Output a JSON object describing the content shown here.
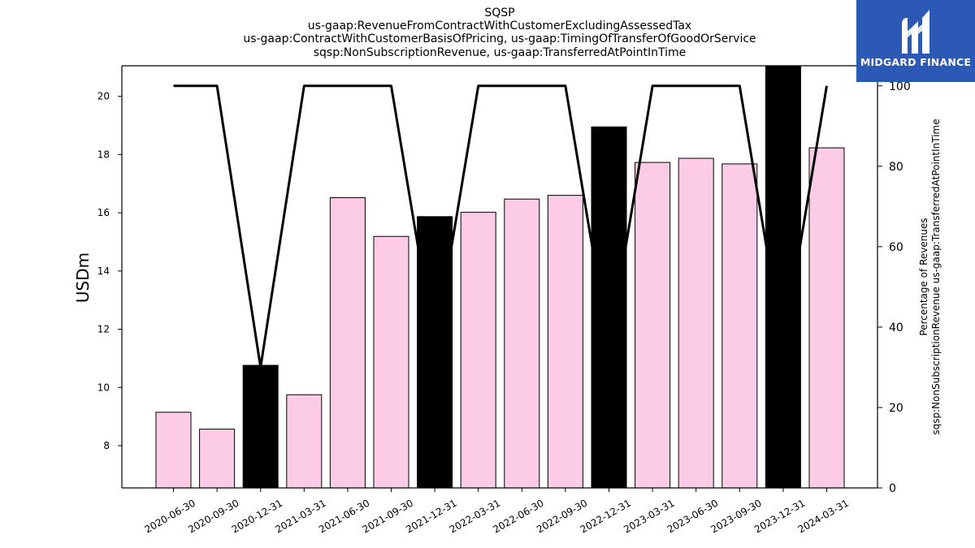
{
  "brand": {
    "name": "MIDGARD FINANCE",
    "logo_color": "#2b59b5",
    "logo_icon": "midgard-m-logo-icon"
  },
  "chart_data": {
    "type": "bar",
    "title_lines": [
      "SQSP",
      "us-gaap:RevenueFromContractWithCustomerExcludingAssessedTax",
      "us-gaap:ContractWithCustomerBasisOfPricing, us-gaap:TimingOfTransferOfGoodOrService",
      "sqsp:NonSubscriptionRevenue, us-gaap:TransferredAtPointInTime"
    ],
    "ylabel": "USDm",
    "y2label_lines": [
      "Percentage of Revenues",
      "sqsp:NonSubscriptionRevenue us-gaap:TransferredAtPointInTime"
    ],
    "categories": [
      "2020-06-30",
      "2020-09-30",
      "2020-12-31",
      "2021-03-31",
      "2021-06-30",
      "2021-09-30",
      "2021-12-31",
      "2022-03-31",
      "2022-06-30",
      "2022-09-30",
      "2022-12-31",
      "2023-03-31",
      "2023-06-30",
      "2023-09-30",
      "2023-12-31",
      "2024-03-31"
    ],
    "values": [
      9.15,
      8.57,
      10.76,
      9.75,
      16.52,
      15.19,
      15.87,
      16.02,
      16.47,
      16.6,
      18.95,
      17.73,
      17.87,
      17.68,
      21.1,
      18.23
    ],
    "bar_colors": [
      "#fccbe6",
      "#fccbe6",
      "#000000",
      "#fccbe6",
      "#fccbe6",
      "#fccbe6",
      "#000000",
      "#fccbe6",
      "#fccbe6",
      "#fccbe6",
      "#000000",
      "#fccbe6",
      "#fccbe6",
      "#fccbe6",
      "#000000",
      "#fccbe6"
    ],
    "line_series": {
      "values": [
        100,
        100,
        30,
        100,
        100,
        100,
        35,
        100,
        100,
        100,
        35,
        100,
        100,
        100,
        35,
        100
      ],
      "color": "#000000"
    },
    "ylim": [
      6.55,
      21.05
    ],
    "yticks": [
      8,
      10,
      12,
      14,
      16,
      18,
      20
    ],
    "y2lim": [
      0,
      105
    ],
    "y2ticks": [
      0,
      20,
      40,
      60,
      80,
      100
    ],
    "grid": false
  }
}
